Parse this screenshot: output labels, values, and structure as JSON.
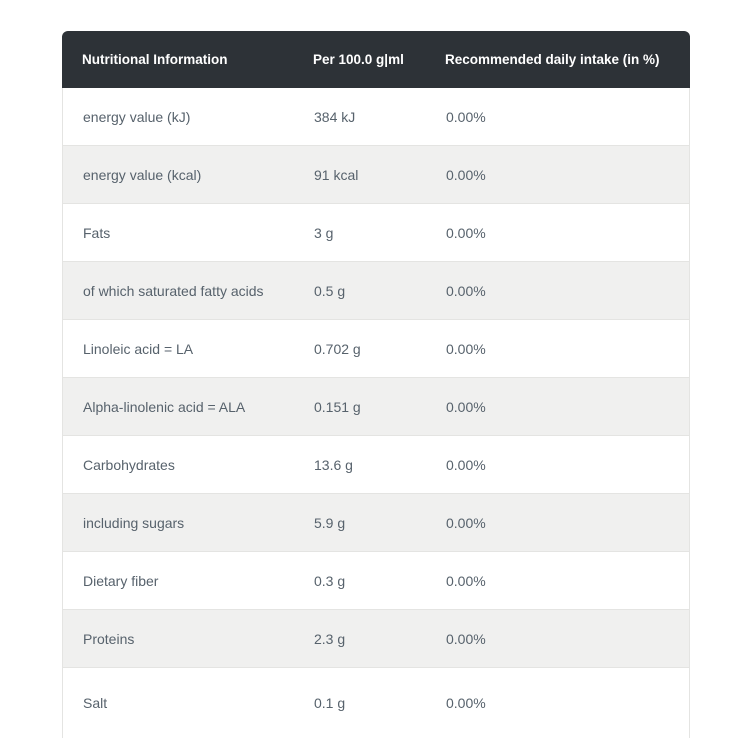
{
  "chart_data": {
    "type": "table",
    "title": "Nutritional Information",
    "columns": [
      "Nutritional Information",
      "Per 100.0 g|ml",
      "Recommended daily intake (in %)"
    ],
    "rows": [
      [
        "energy value (kJ)",
        "384 kJ",
        "0.00%"
      ],
      [
        "energy value (kcal)",
        "91 kcal",
        "0.00%"
      ],
      [
        "Fats",
        "3 g",
        "0.00%"
      ],
      [
        "of which saturated fatty acids",
        "0.5 g",
        "0.00%"
      ],
      [
        "Linoleic acid = LA",
        "0.702 g",
        "0.00%"
      ],
      [
        "Alpha-linolenic acid = ALA",
        "0.151 g",
        "0.00%"
      ],
      [
        "Carbohydrates",
        "13.6 g",
        "0.00%"
      ],
      [
        "including sugars",
        "5.9 g",
        "0.00%"
      ],
      [
        "Dietary fiber",
        "0.3 g",
        "0.00%"
      ],
      [
        "Proteins",
        "2.3 g",
        "0.00%"
      ],
      [
        "Salt",
        "0.1 g",
        "0.00%"
      ]
    ]
  },
  "table": {
    "columns": [
      "Nutritional Information",
      "Per 100.0 g|ml",
      "Recommended daily intake (in %)"
    ],
    "rows": [
      {
        "label": "energy value (kJ)",
        "value": "384 kJ",
        "rdi": "0.00%"
      },
      {
        "label": "energy value (kcal)",
        "value": "91 kcal",
        "rdi": "0.00%"
      },
      {
        "label": "Fats",
        "value": "3 g",
        "rdi": "0.00%"
      },
      {
        "label": "of which saturated fatty acids",
        "value": "0.5 g",
        "rdi": "0.00%"
      },
      {
        "label": "Linoleic acid = LA",
        "value": "0.702 g",
        "rdi": "0.00%"
      },
      {
        "label": "Alpha-linolenic acid = ALA",
        "value": "0.151 g",
        "rdi": "0.00%"
      },
      {
        "label": "Carbohydrates",
        "value": "13.6 g",
        "rdi": "0.00%"
      },
      {
        "label": "including sugars",
        "value": "5.9 g",
        "rdi": "0.00%"
      },
      {
        "label": "Dietary fiber",
        "value": "0.3 g",
        "rdi": "0.00%"
      },
      {
        "label": "Proteins",
        "value": "2.3 g",
        "rdi": "0.00%"
      },
      {
        "label": "Salt",
        "value": "0.1 g",
        "rdi": "0.00%"
      }
    ]
  },
  "colors": {
    "header_bg": "#2d3237",
    "header_text": "#ffffff",
    "row_bg": "#ffffff",
    "row_alt_bg": "#f0f0ef",
    "border": "#e4e4e2",
    "text": "#57626c",
    "page_bg": "#ffffff"
  }
}
